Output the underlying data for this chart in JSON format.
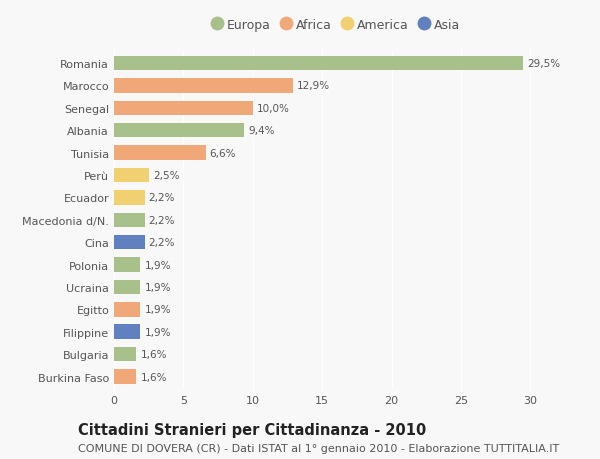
{
  "countries": [
    "Romania",
    "Marocco",
    "Senegal",
    "Albania",
    "Tunisia",
    "Perù",
    "Ecuador",
    "Macedonia d/N.",
    "Cina",
    "Polonia",
    "Ucraina",
    "Egitto",
    "Filippine",
    "Bulgaria",
    "Burkina Faso"
  ],
  "values": [
    29.5,
    12.9,
    10.0,
    9.4,
    6.6,
    2.5,
    2.2,
    2.2,
    2.2,
    1.9,
    1.9,
    1.9,
    1.9,
    1.6,
    1.6
  ],
  "labels": [
    "29,5%",
    "12,9%",
    "10,0%",
    "9,4%",
    "6,6%",
    "2,5%",
    "2,2%",
    "2,2%",
    "2,2%",
    "1,9%",
    "1,9%",
    "1,9%",
    "1,9%",
    "1,6%",
    "1,6%"
  ],
  "continent": [
    "Europa",
    "Africa",
    "Africa",
    "Europa",
    "Africa",
    "America",
    "America",
    "Europa",
    "Asia",
    "Europa",
    "Europa",
    "Africa",
    "Asia",
    "Europa",
    "Africa"
  ],
  "colors": {
    "Europa": "#a8c08a",
    "Africa": "#f0a878",
    "America": "#f0d070",
    "Asia": "#6080c0"
  },
  "legend_order": [
    "Europa",
    "Africa",
    "America",
    "Asia"
  ],
  "title": "Cittadini Stranieri per Cittadinanza - 2010",
  "subtitle": "COMUNE DI DOVERA (CR) - Dati ISTAT al 1° gennaio 2010 - Elaborazione TUTTITALIA.IT",
  "xlim": [
    0,
    32
  ],
  "xticks": [
    0,
    5,
    10,
    15,
    20,
    25,
    30
  ],
  "background_color": "#f8f8f8",
  "bar_height": 0.65,
  "title_fontsize": 10.5,
  "subtitle_fontsize": 8,
  "label_fontsize": 7.5,
  "tick_fontsize": 8,
  "legend_fontsize": 9
}
